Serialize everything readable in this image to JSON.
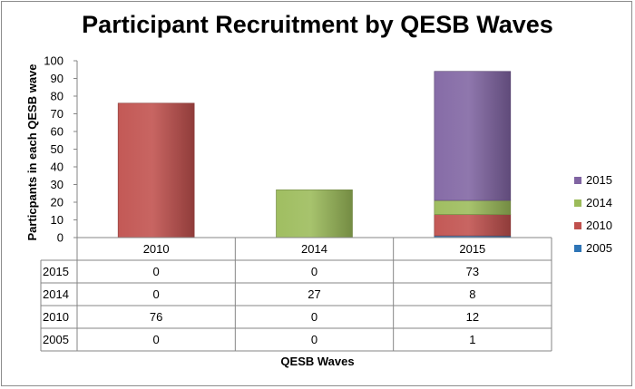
{
  "chart_data": {
    "type": "bar",
    "stacked": true,
    "title": "Participant Recruitment by QESB Waves",
    "xlabel": "QESB Waves",
    "ylabel": "Particpants in each QESB wave",
    "ylim": [
      0,
      100
    ],
    "yticks": [
      0,
      10,
      20,
      30,
      40,
      50,
      60,
      70,
      80,
      90,
      100
    ],
    "categories": [
      "2010",
      "2014",
      "2015"
    ],
    "series": [
      {
        "name": "2005",
        "color": "#2e75b6",
        "values": [
          0,
          0,
          1
        ]
      },
      {
        "name": "2010",
        "color": "#c0504d",
        "values": [
          76,
          0,
          12
        ]
      },
      {
        "name": "2014",
        "color": "#9bbb59",
        "values": [
          0,
          27,
          8
        ]
      },
      {
        "name": "2015",
        "color": "#8064a2",
        "values": [
          0,
          0,
          73
        ]
      }
    ],
    "data_table": true,
    "grid": false,
    "legend_position": "right"
  }
}
